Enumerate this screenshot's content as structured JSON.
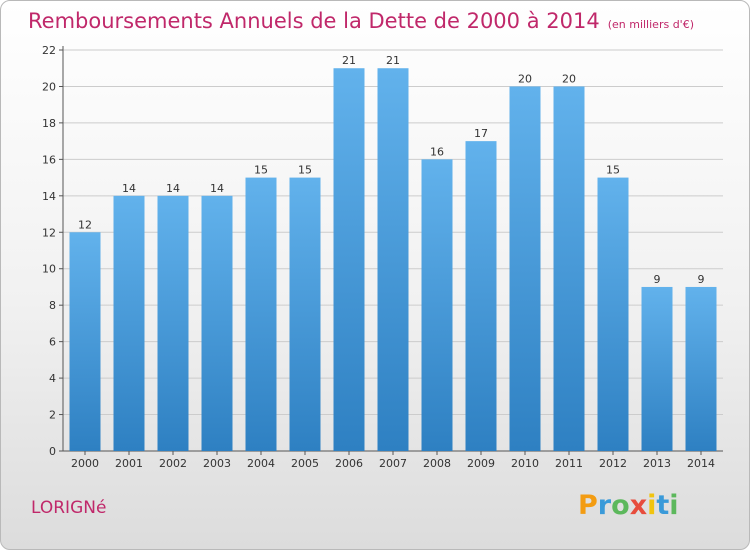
{
  "header": {
    "title": "Remboursements Annuels de la Dette de 2000 à 2014",
    "unit": "(en milliers d'€)"
  },
  "footer": {
    "city": "LORIGNé",
    "logo": {
      "text": "Proxiti",
      "letters": [
        {
          "ch": "P",
          "color": "#f39c12"
        },
        {
          "ch": "r",
          "color": "#3a9ad9"
        },
        {
          "ch": "o",
          "color": "#5cb85c"
        },
        {
          "ch": "x",
          "color": "#e74c3c"
        },
        {
          "ch": "i",
          "color": "#f1c40f"
        },
        {
          "ch": "t",
          "color": "#3a9ad9"
        },
        {
          "ch": "i",
          "color": "#5cb85c"
        }
      ]
    }
  },
  "colors": {
    "title": "#c0286a",
    "bar_top": "#62b2ec",
    "bar_bottom": "#2e80c2",
    "grid": "#cccccc"
  },
  "chart_data": {
    "type": "bar",
    "title": "Remboursements Annuels de la Dette de 2000 à 2014",
    "subtitle": "(en milliers d'€)",
    "categories": [
      "2000",
      "2001",
      "2002",
      "2003",
      "2004",
      "2005",
      "2006",
      "2007",
      "2008",
      "2009",
      "2010",
      "2011",
      "2012",
      "2013",
      "2014"
    ],
    "values": [
      12,
      14,
      14,
      14,
      15,
      15,
      21,
      21,
      16,
      17,
      20,
      20,
      15,
      9,
      9
    ],
    "ylim": [
      0,
      22
    ],
    "yticks": [
      0,
      2,
      4,
      6,
      8,
      10,
      12,
      14,
      16,
      18,
      20,
      22
    ],
    "grid": true,
    "data_labels": true
  }
}
